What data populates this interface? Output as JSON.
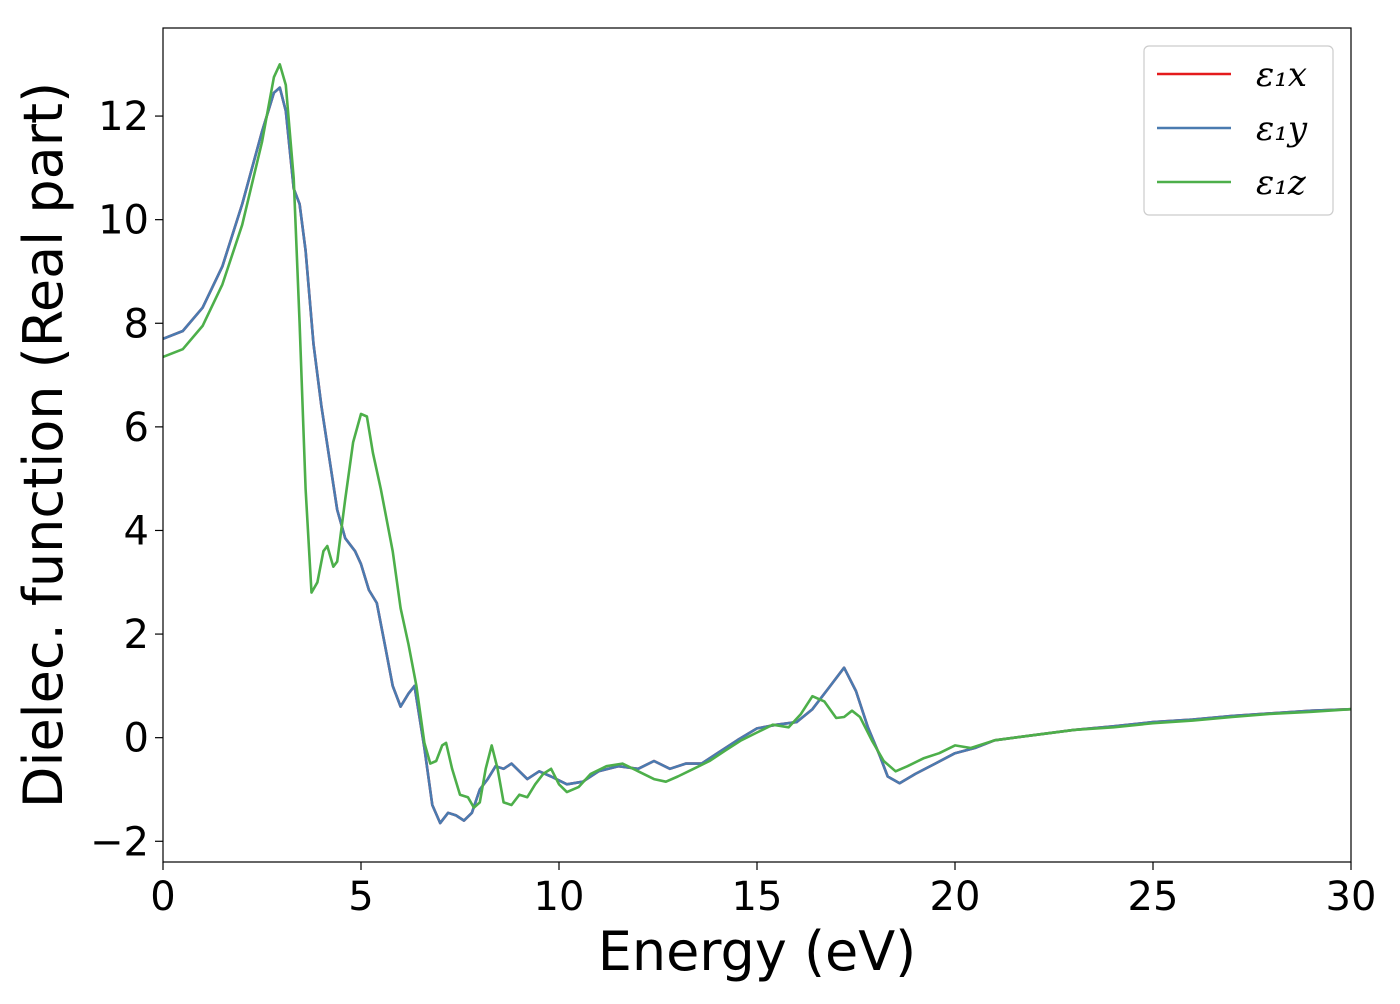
{
  "chart_data": {
    "type": "line",
    "title": "",
    "xlabel": "Energy (eV)",
    "ylabel": "Dielec. function (Real part)",
    "xlim": [
      0,
      30
    ],
    "ylim": [
      -2.4,
      13.7
    ],
    "xticks": [
      0,
      5,
      10,
      15,
      20,
      25,
      30
    ],
    "xtick_labels": [
      "0",
      "5",
      "10",
      "15",
      "20",
      "25",
      "30"
    ],
    "yticks": [
      -2,
      0,
      2,
      4,
      6,
      8,
      10,
      12
    ],
    "ytick_labels": [
      "−2",
      "0",
      "2",
      "4",
      "6",
      "8",
      "10",
      "12"
    ],
    "grid": false,
    "legend_position": "top-right",
    "series": [
      {
        "name": "ε₁x",
        "color": "#e41a1c",
        "points": [
          [
            0,
            7.7
          ],
          [
            0.5,
            7.85
          ],
          [
            1.0,
            8.3
          ],
          [
            1.5,
            9.1
          ],
          [
            2.0,
            10.3
          ],
          [
            2.5,
            11.7
          ],
          [
            2.8,
            12.45
          ],
          [
            2.95,
            12.55
          ],
          [
            3.1,
            12.1
          ],
          [
            3.3,
            10.6
          ],
          [
            3.45,
            10.3
          ],
          [
            3.6,
            9.4
          ],
          [
            3.8,
            7.6
          ],
          [
            4.0,
            6.4
          ],
          [
            4.2,
            5.4
          ],
          [
            4.4,
            4.4
          ],
          [
            4.6,
            3.85
          ],
          [
            4.85,
            3.6
          ],
          [
            5.0,
            3.35
          ],
          [
            5.2,
            2.85
          ],
          [
            5.4,
            2.6
          ],
          [
            5.6,
            1.8
          ],
          [
            5.8,
            1.0
          ],
          [
            6.0,
            0.6
          ],
          [
            6.2,
            0.85
          ],
          [
            6.35,
            1.0
          ],
          [
            6.6,
            -0.2
          ],
          [
            6.8,
            -1.3
          ],
          [
            7.0,
            -1.65
          ],
          [
            7.2,
            -1.45
          ],
          [
            7.4,
            -1.5
          ],
          [
            7.6,
            -1.6
          ],
          [
            7.8,
            -1.45
          ],
          [
            8.0,
            -1.0
          ],
          [
            8.2,
            -0.8
          ],
          [
            8.4,
            -0.55
          ],
          [
            8.6,
            -0.6
          ],
          [
            8.8,
            -0.5
          ],
          [
            9.0,
            -0.65
          ],
          [
            9.2,
            -0.8
          ],
          [
            9.5,
            -0.65
          ],
          [
            9.8,
            -0.75
          ],
          [
            10.2,
            -0.9
          ],
          [
            10.6,
            -0.85
          ],
          [
            11.0,
            -0.65
          ],
          [
            11.5,
            -0.55
          ],
          [
            12.0,
            -0.6
          ],
          [
            12.4,
            -0.45
          ],
          [
            12.8,
            -0.6
          ],
          [
            13.2,
            -0.5
          ],
          [
            13.6,
            -0.5
          ],
          [
            14.0,
            -0.3
          ],
          [
            14.5,
            -0.05
          ],
          [
            15.0,
            0.18
          ],
          [
            15.5,
            0.25
          ],
          [
            16.0,
            0.3
          ],
          [
            16.4,
            0.55
          ],
          [
            16.8,
            0.95
          ],
          [
            17.2,
            1.35
          ],
          [
            17.5,
            0.9
          ],
          [
            17.8,
            0.2
          ],
          [
            18.1,
            -0.35
          ],
          [
            18.3,
            -0.75
          ],
          [
            18.6,
            -0.88
          ],
          [
            19.0,
            -0.7
          ],
          [
            19.5,
            -0.5
          ],
          [
            20.0,
            -0.3
          ],
          [
            20.5,
            -0.2
          ],
          [
            21.0,
            -0.05
          ],
          [
            22.0,
            0.05
          ],
          [
            23.0,
            0.15
          ],
          [
            24.0,
            0.22
          ],
          [
            25.0,
            0.3
          ],
          [
            26.0,
            0.35
          ],
          [
            27.0,
            0.42
          ],
          [
            28.0,
            0.47
          ],
          [
            29.0,
            0.52
          ],
          [
            30.0,
            0.55
          ]
        ]
      },
      {
        "name": "ε₁y",
        "color": "#4a7bb0",
        "points": [
          [
            0,
            7.7
          ],
          [
            0.5,
            7.85
          ],
          [
            1.0,
            8.3
          ],
          [
            1.5,
            9.1
          ],
          [
            2.0,
            10.3
          ],
          [
            2.5,
            11.7
          ],
          [
            2.8,
            12.45
          ],
          [
            2.95,
            12.55
          ],
          [
            3.1,
            12.1
          ],
          [
            3.3,
            10.6
          ],
          [
            3.45,
            10.3
          ],
          [
            3.6,
            9.4
          ],
          [
            3.8,
            7.6
          ],
          [
            4.0,
            6.4
          ],
          [
            4.2,
            5.4
          ],
          [
            4.4,
            4.4
          ],
          [
            4.6,
            3.85
          ],
          [
            4.85,
            3.6
          ],
          [
            5.0,
            3.35
          ],
          [
            5.2,
            2.85
          ],
          [
            5.4,
            2.6
          ],
          [
            5.6,
            1.8
          ],
          [
            5.8,
            1.0
          ],
          [
            6.0,
            0.6
          ],
          [
            6.2,
            0.85
          ],
          [
            6.35,
            1.0
          ],
          [
            6.6,
            -0.2
          ],
          [
            6.8,
            -1.3
          ],
          [
            7.0,
            -1.65
          ],
          [
            7.2,
            -1.45
          ],
          [
            7.4,
            -1.5
          ],
          [
            7.6,
            -1.6
          ],
          [
            7.8,
            -1.45
          ],
          [
            8.0,
            -1.0
          ],
          [
            8.2,
            -0.8
          ],
          [
            8.4,
            -0.55
          ],
          [
            8.6,
            -0.6
          ],
          [
            8.8,
            -0.5
          ],
          [
            9.0,
            -0.65
          ],
          [
            9.2,
            -0.8
          ],
          [
            9.5,
            -0.65
          ],
          [
            9.8,
            -0.75
          ],
          [
            10.2,
            -0.9
          ],
          [
            10.6,
            -0.85
          ],
          [
            11.0,
            -0.65
          ],
          [
            11.5,
            -0.55
          ],
          [
            12.0,
            -0.6
          ],
          [
            12.4,
            -0.45
          ],
          [
            12.8,
            -0.6
          ],
          [
            13.2,
            -0.5
          ],
          [
            13.6,
            -0.5
          ],
          [
            14.0,
            -0.3
          ],
          [
            14.5,
            -0.05
          ],
          [
            15.0,
            0.18
          ],
          [
            15.5,
            0.25
          ],
          [
            16.0,
            0.3
          ],
          [
            16.4,
            0.55
          ],
          [
            16.8,
            0.95
          ],
          [
            17.2,
            1.35
          ],
          [
            17.5,
            0.9
          ],
          [
            17.8,
            0.2
          ],
          [
            18.1,
            -0.35
          ],
          [
            18.3,
            -0.75
          ],
          [
            18.6,
            -0.88
          ],
          [
            19.0,
            -0.7
          ],
          [
            19.5,
            -0.5
          ],
          [
            20.0,
            -0.3
          ],
          [
            20.5,
            -0.2
          ],
          [
            21.0,
            -0.05
          ],
          [
            22.0,
            0.05
          ],
          [
            23.0,
            0.15
          ],
          [
            24.0,
            0.22
          ],
          [
            25.0,
            0.3
          ],
          [
            26.0,
            0.35
          ],
          [
            27.0,
            0.42
          ],
          [
            28.0,
            0.47
          ],
          [
            29.0,
            0.52
          ],
          [
            30.0,
            0.55
          ]
        ]
      },
      {
        "name": "ε₁z",
        "color": "#4daf4a",
        "points": [
          [
            0,
            7.35
          ],
          [
            0.5,
            7.5
          ],
          [
            1.0,
            7.95
          ],
          [
            1.5,
            8.75
          ],
          [
            2.0,
            9.9
          ],
          [
            2.5,
            11.5
          ],
          [
            2.8,
            12.75
          ],
          [
            2.95,
            13.0
          ],
          [
            3.1,
            12.6
          ],
          [
            3.3,
            10.8
          ],
          [
            3.45,
            8.0
          ],
          [
            3.6,
            4.8
          ],
          [
            3.75,
            2.8
          ],
          [
            3.9,
            3.0
          ],
          [
            4.05,
            3.6
          ],
          [
            4.15,
            3.7
          ],
          [
            4.3,
            3.3
          ],
          [
            4.4,
            3.4
          ],
          [
            4.6,
            4.6
          ],
          [
            4.8,
            5.7
          ],
          [
            5.0,
            6.25
          ],
          [
            5.15,
            6.2
          ],
          [
            5.3,
            5.5
          ],
          [
            5.5,
            4.8
          ],
          [
            5.8,
            3.6
          ],
          [
            6.0,
            2.5
          ],
          [
            6.2,
            1.8
          ],
          [
            6.4,
            1.0
          ],
          [
            6.6,
            -0.1
          ],
          [
            6.75,
            -0.5
          ],
          [
            6.9,
            -0.45
          ],
          [
            7.05,
            -0.15
          ],
          [
            7.15,
            -0.1
          ],
          [
            7.3,
            -0.6
          ],
          [
            7.5,
            -1.1
          ],
          [
            7.7,
            -1.15
          ],
          [
            7.85,
            -1.35
          ],
          [
            8.0,
            -1.25
          ],
          [
            8.15,
            -0.6
          ],
          [
            8.3,
            -0.15
          ],
          [
            8.45,
            -0.6
          ],
          [
            8.6,
            -1.25
          ],
          [
            8.8,
            -1.3
          ],
          [
            9.0,
            -1.1
          ],
          [
            9.2,
            -1.15
          ],
          [
            9.4,
            -0.9
          ],
          [
            9.6,
            -0.7
          ],
          [
            9.8,
            -0.6
          ],
          [
            10.0,
            -0.9
          ],
          [
            10.2,
            -1.05
          ],
          [
            10.5,
            -0.95
          ],
          [
            10.8,
            -0.7
          ],
          [
            11.2,
            -0.55
          ],
          [
            11.6,
            -0.5
          ],
          [
            12.0,
            -0.65
          ],
          [
            12.4,
            -0.8
          ],
          [
            12.7,
            -0.85
          ],
          [
            13.0,
            -0.75
          ],
          [
            13.4,
            -0.6
          ],
          [
            13.8,
            -0.45
          ],
          [
            14.2,
            -0.25
          ],
          [
            14.6,
            -0.05
          ],
          [
            15.0,
            0.1
          ],
          [
            15.4,
            0.25
          ],
          [
            15.8,
            0.2
          ],
          [
            16.1,
            0.45
          ],
          [
            16.4,
            0.8
          ],
          [
            16.7,
            0.7
          ],
          [
            17.0,
            0.38
          ],
          [
            17.2,
            0.4
          ],
          [
            17.4,
            0.52
          ],
          [
            17.6,
            0.4
          ],
          [
            17.9,
            -0.05
          ],
          [
            18.2,
            -0.45
          ],
          [
            18.5,
            -0.65
          ],
          [
            18.8,
            -0.55
          ],
          [
            19.2,
            -0.4
          ],
          [
            19.6,
            -0.3
          ],
          [
            20.0,
            -0.15
          ],
          [
            20.4,
            -0.2
          ],
          [
            21.0,
            -0.05
          ],
          [
            22.0,
            0.05
          ],
          [
            23.0,
            0.15
          ],
          [
            24.0,
            0.2
          ],
          [
            25.0,
            0.28
          ],
          [
            26.0,
            0.33
          ],
          [
            27.0,
            0.4
          ],
          [
            28.0,
            0.46
          ],
          [
            29.0,
            0.5
          ],
          [
            30.0,
            0.55
          ]
        ]
      }
    ]
  }
}
